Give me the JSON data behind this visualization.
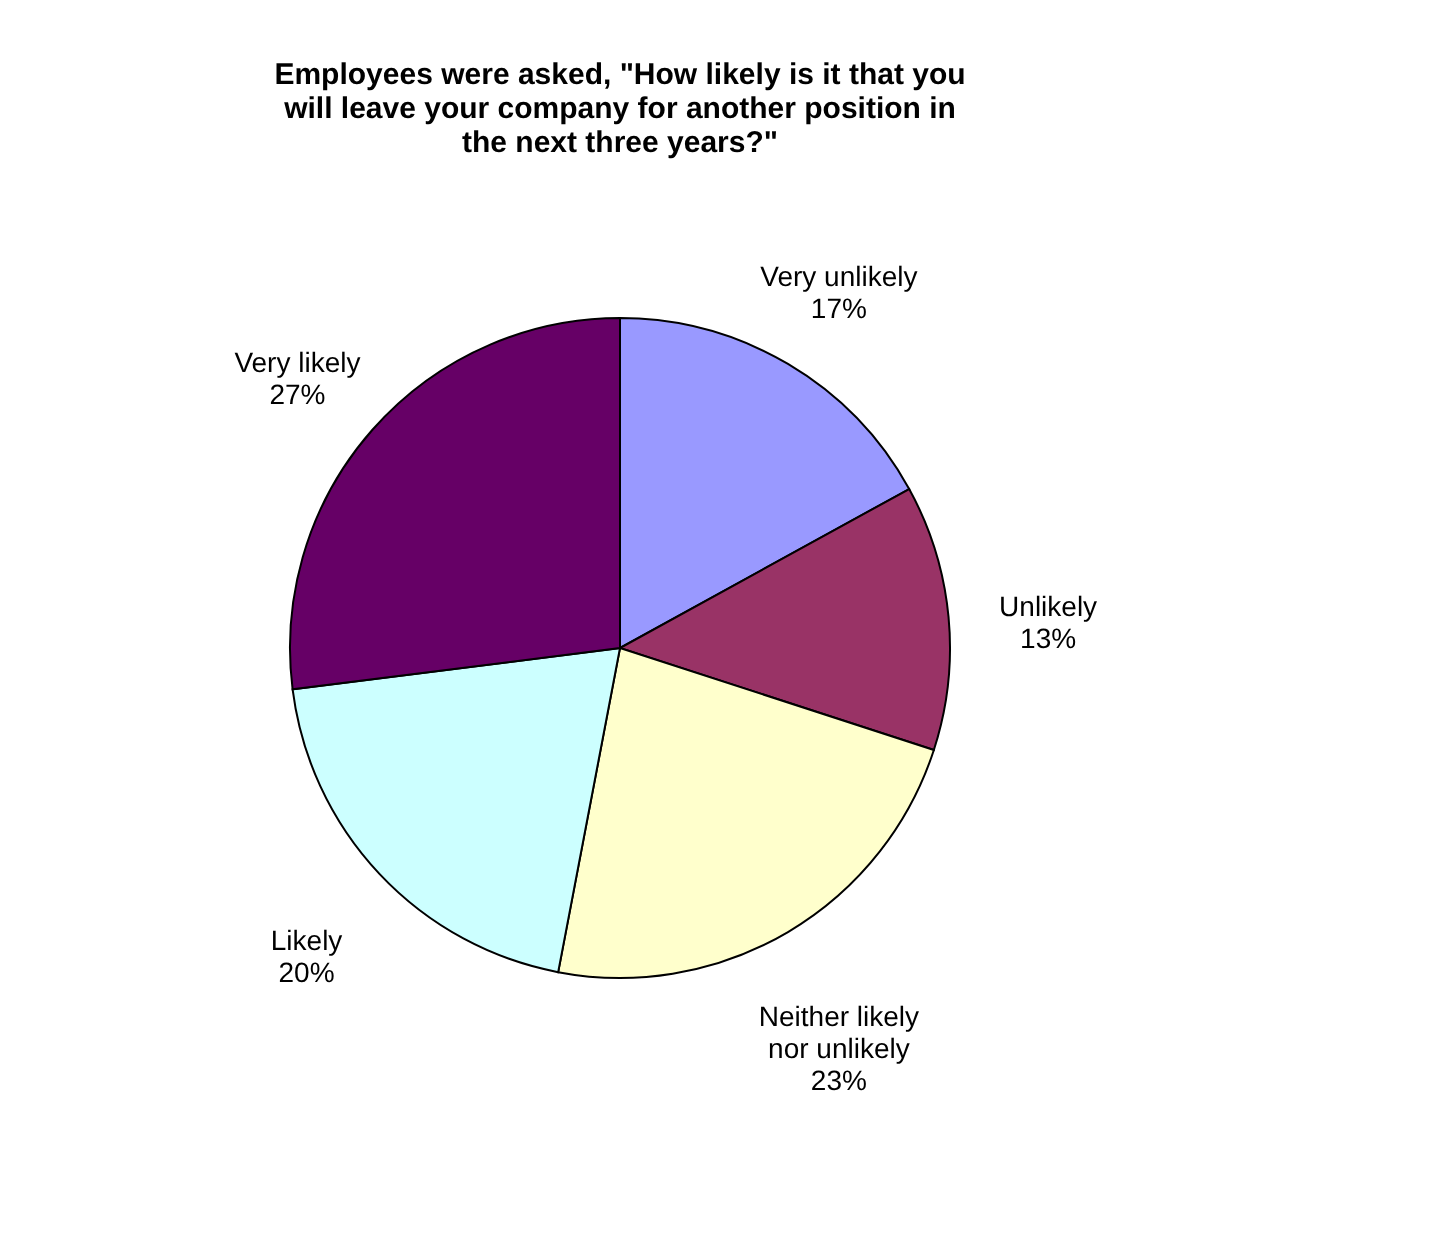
{
  "chart_data": {
    "type": "pie",
    "title": "Employees were asked, \"How likely is it that you will leave your company for another position in the next three years?\"",
    "categories": [
      "Very unlikely",
      "Unlikely",
      "Neither likely nor unlikely",
      "Likely",
      "Very likely"
    ],
    "values": [
      17,
      13,
      23,
      20,
      27
    ],
    "colors": [
      "#9999ff",
      "#993366",
      "#ffffcc",
      "#ccffff",
      "#660066"
    ],
    "value_labels": [
      "17%",
      "13%",
      "23%",
      "20%",
      "27%"
    ],
    "legend": false
  }
}
